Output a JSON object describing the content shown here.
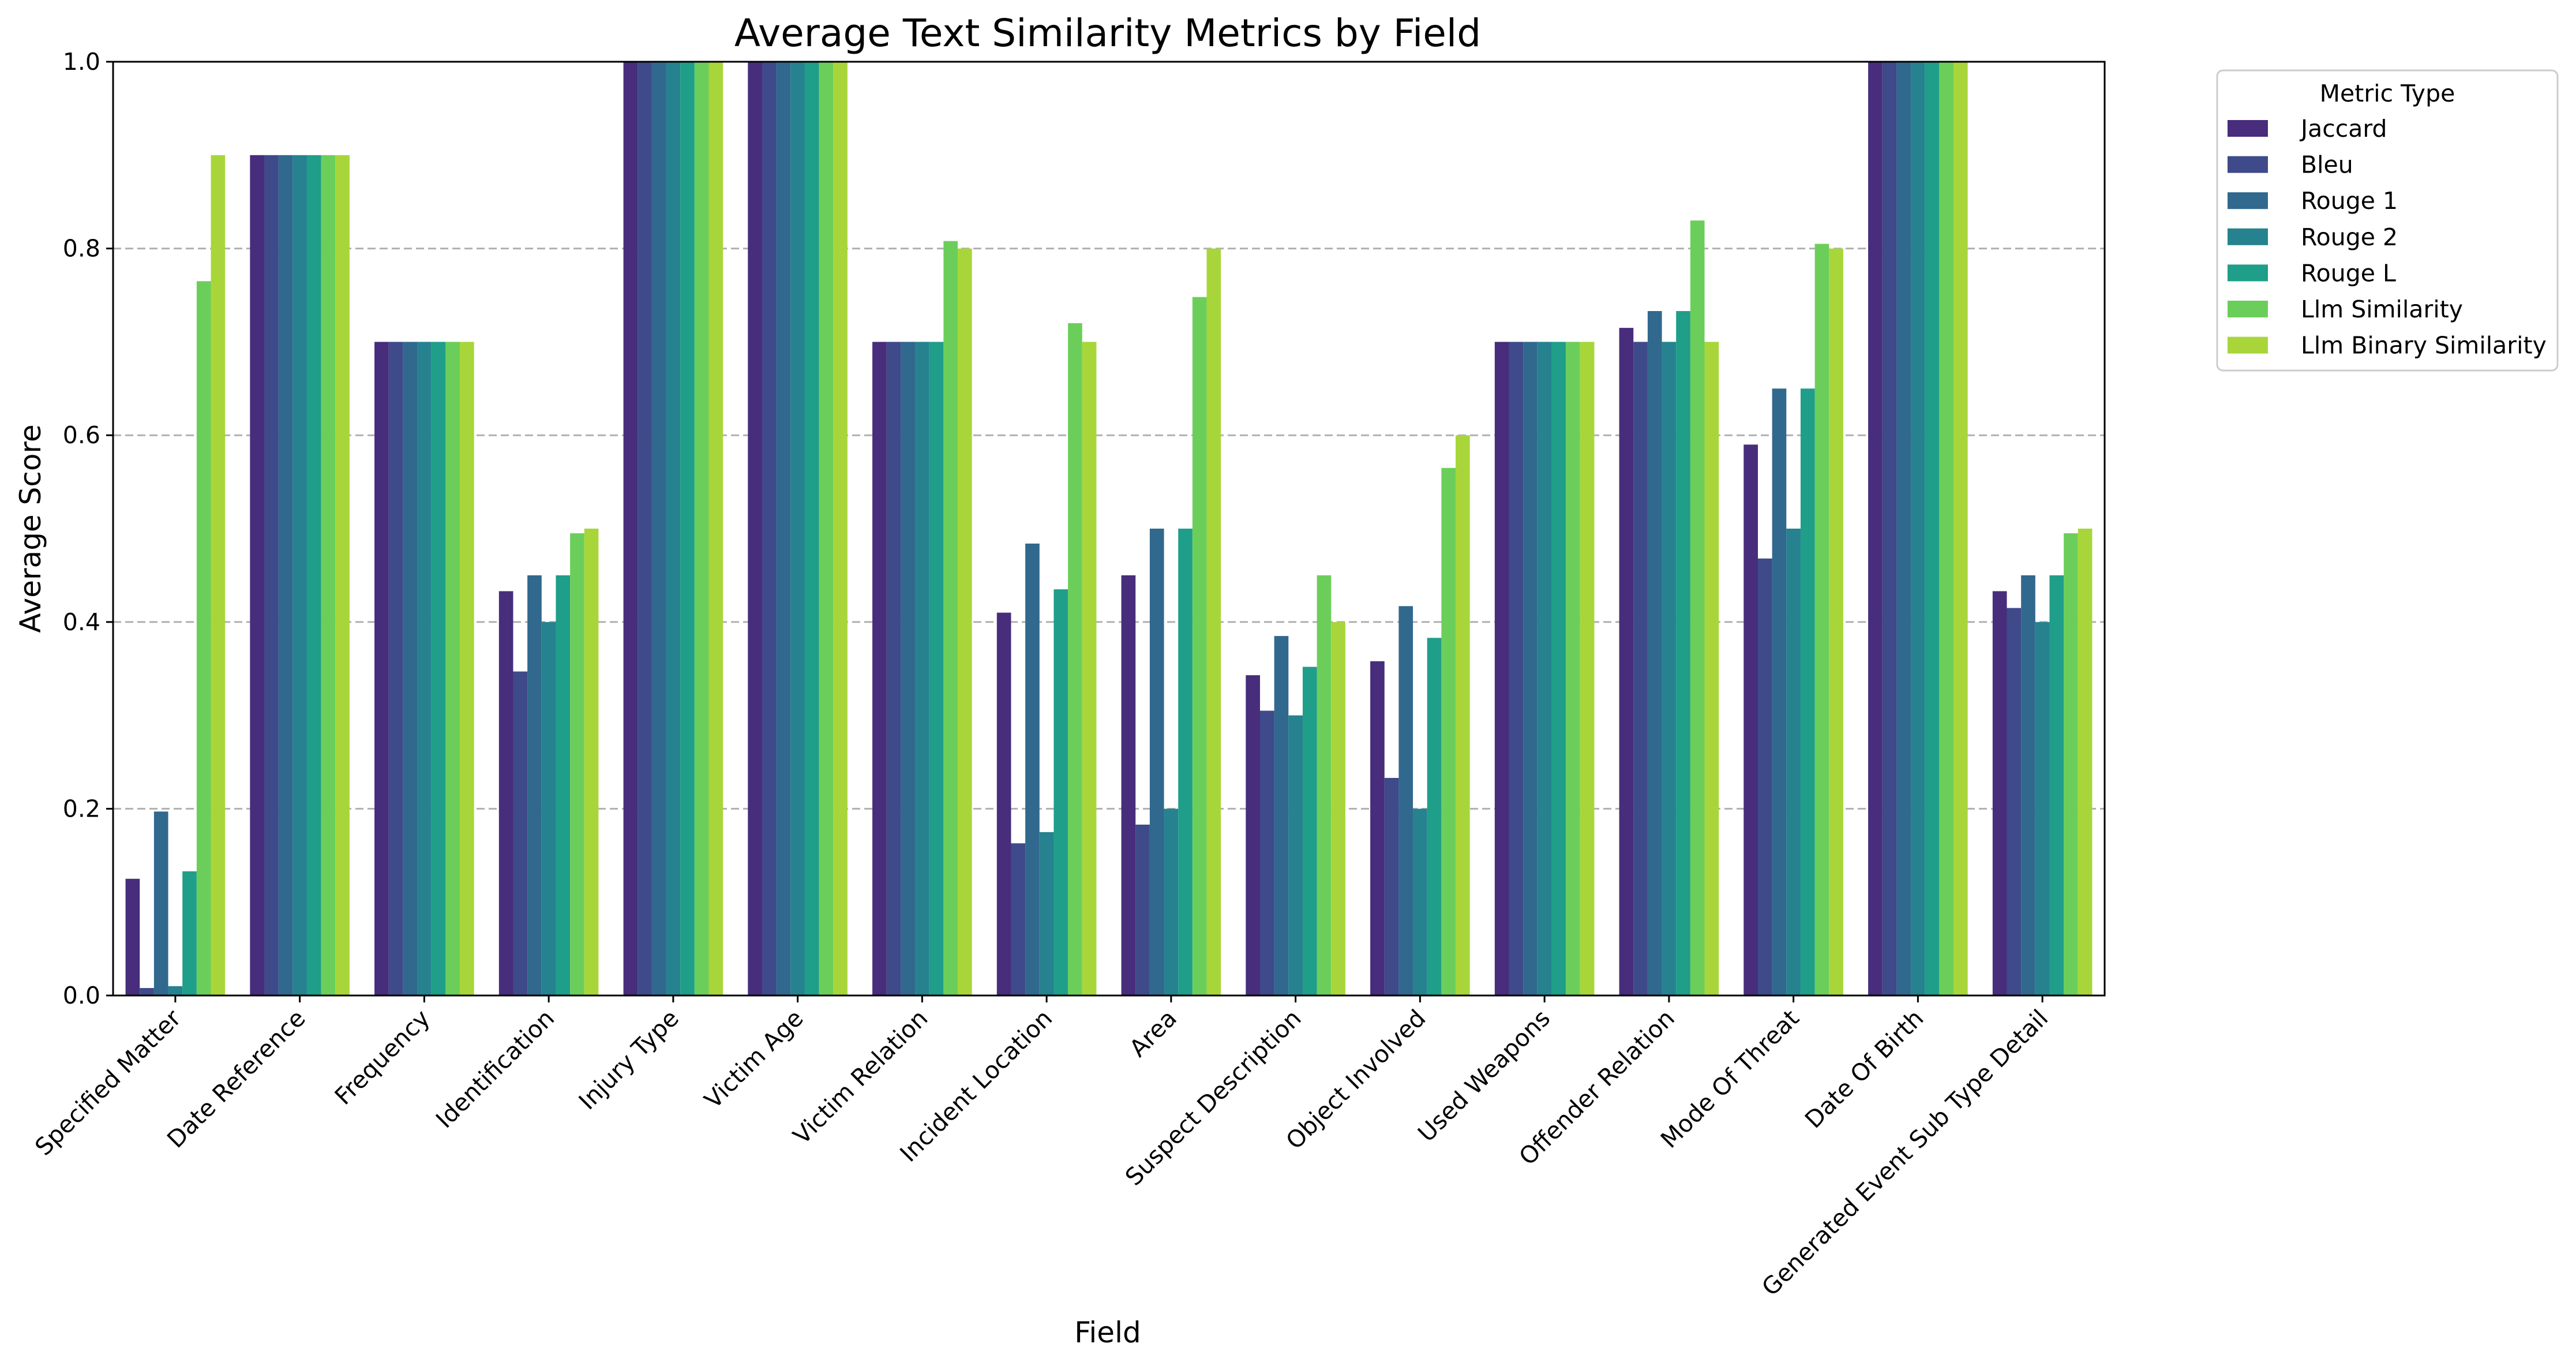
{
  "chart_data": {
    "type": "bar",
    "title": "Average Text Similarity Metrics by Field",
    "xlabel": "Field",
    "ylabel": "Average Score",
    "ylim": [
      0,
      1.0
    ],
    "yticks": [
      "0.0",
      "0.2",
      "0.4",
      "0.6",
      "0.8",
      "1.0"
    ],
    "grid": "y-dashed",
    "legend_title": "Metric Type",
    "legend_position": "outside-top-right",
    "categories": [
      "Specified Matter",
      "Date Reference",
      "Frequency",
      "Identification",
      "Injury Type",
      "Victim Age",
      "Victim Relation",
      "Incident Location",
      "Area",
      "Suspect Description",
      "Object Involved",
      "Used Weapons",
      "Offender Relation",
      "Mode Of Threat",
      "Date Of Birth",
      "Generated Event Sub Type Detail"
    ],
    "series": [
      {
        "name": "Jaccard",
        "color": "#472d7b",
        "values": [
          0.125,
          0.9,
          0.7,
          0.433,
          1.0,
          1.0,
          0.7,
          0.41,
          0.45,
          0.343,
          0.358,
          0.7,
          0.715,
          0.59,
          1.0,
          0.433
        ]
      },
      {
        "name": "Bleu",
        "color": "#3e4a89",
        "values": [
          0.008,
          0.9,
          0.7,
          0.347,
          1.0,
          1.0,
          0.7,
          0.163,
          0.183,
          0.305,
          0.233,
          0.7,
          0.7,
          0.468,
          1.0,
          0.415
        ]
      },
      {
        "name": "Rouge 1",
        "color": "#31688e",
        "values": [
          0.197,
          0.9,
          0.7,
          0.45,
          1.0,
          1.0,
          0.7,
          0.484,
          0.5,
          0.385,
          0.417,
          0.7,
          0.733,
          0.65,
          1.0,
          0.45
        ]
      },
      {
        "name": "Rouge 2",
        "color": "#26828e",
        "values": [
          0.01,
          0.9,
          0.7,
          0.4,
          1.0,
          1.0,
          0.7,
          0.175,
          0.2,
          0.3,
          0.2,
          0.7,
          0.7,
          0.5,
          1.0,
          0.4
        ]
      },
      {
        "name": "Rouge L",
        "color": "#1f9e89",
        "values": [
          0.133,
          0.9,
          0.7,
          0.45,
          1.0,
          1.0,
          0.7,
          0.435,
          0.5,
          0.352,
          0.383,
          0.7,
          0.733,
          0.65,
          1.0,
          0.45
        ]
      },
      {
        "name": "Llm Similarity",
        "color": "#6cce5a",
        "values": [
          0.765,
          0.9,
          0.7,
          0.495,
          1.0,
          1.0,
          0.808,
          0.72,
          0.748,
          0.45,
          0.565,
          0.7,
          0.83,
          0.805,
          1.0,
          0.495
        ]
      },
      {
        "name": "Llm Binary Similarity",
        "color": "#a8d63a",
        "values": [
          0.9,
          0.9,
          0.7,
          0.5,
          1.0,
          1.0,
          0.8,
          0.7,
          0.8,
          0.4,
          0.6,
          0.7,
          0.7,
          0.8,
          1.0,
          0.5
        ]
      }
    ]
  }
}
